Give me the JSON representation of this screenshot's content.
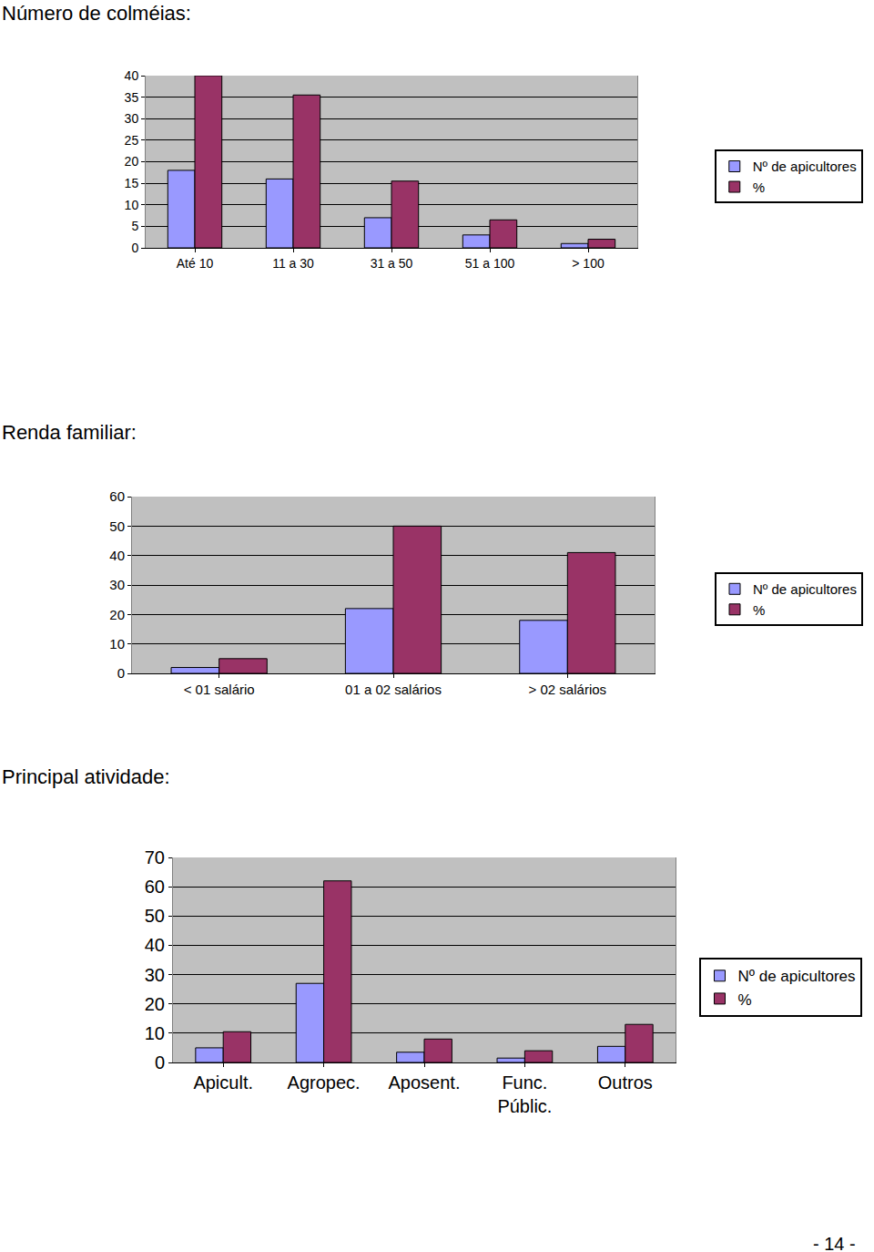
{
  "chart_data": [
    {
      "type": "bar",
      "title": "Número de colméias:",
      "categories": [
        "Até 10",
        "11 a 30",
        "31 a 50",
        "51 a 100",
        "> 100"
      ],
      "series": [
        {
          "name": "Nº de apicultores",
          "color": "#9999ff",
          "values": [
            18,
            16,
            7,
            3,
            1
          ]
        },
        {
          "name": "%",
          "color": "#993366",
          "values": [
            40,
            35.5,
            15.5,
            6.5,
            2
          ]
        }
      ],
      "ylim": [
        0,
        40
      ],
      "yticks": [
        0,
        5,
        10,
        15,
        20,
        25,
        30,
        35,
        40
      ],
      "grid": true,
      "legend": "right"
    },
    {
      "type": "bar",
      "title": "Renda familiar:",
      "categories": [
        "< 01 salário",
        "01 a 02 salários",
        "> 02 salários"
      ],
      "series": [
        {
          "name": "Nº de apicultores",
          "color": "#9999ff",
          "values": [
            2,
            22,
            18
          ]
        },
        {
          "name": "%",
          "color": "#993366",
          "values": [
            5,
            50,
            41
          ]
        }
      ],
      "ylim": [
        0,
        60
      ],
      "yticks": [
        0,
        10,
        20,
        30,
        40,
        50,
        60
      ],
      "grid": true,
      "legend": "right"
    },
    {
      "type": "bar",
      "title": "Principal atividade:",
      "categories": [
        "Apicult.",
        "Agropec.",
        "Aposent.",
        "Func.\nPúblic.",
        "Outros"
      ],
      "series": [
        {
          "name": "Nº de apicultores",
          "color": "#9999ff",
          "values": [
            5,
            27,
            3.5,
            1.5,
            5.5
          ]
        },
        {
          "name": "%",
          "color": "#993366",
          "values": [
            10.5,
            62,
            8,
            4,
            13
          ]
        }
      ],
      "ylim": [
        0,
        70
      ],
      "yticks": [
        0,
        10,
        20,
        30,
        40,
        50,
        60,
        70
      ],
      "grid": true,
      "legend": "right"
    }
  ],
  "footer": "- 14 -"
}
